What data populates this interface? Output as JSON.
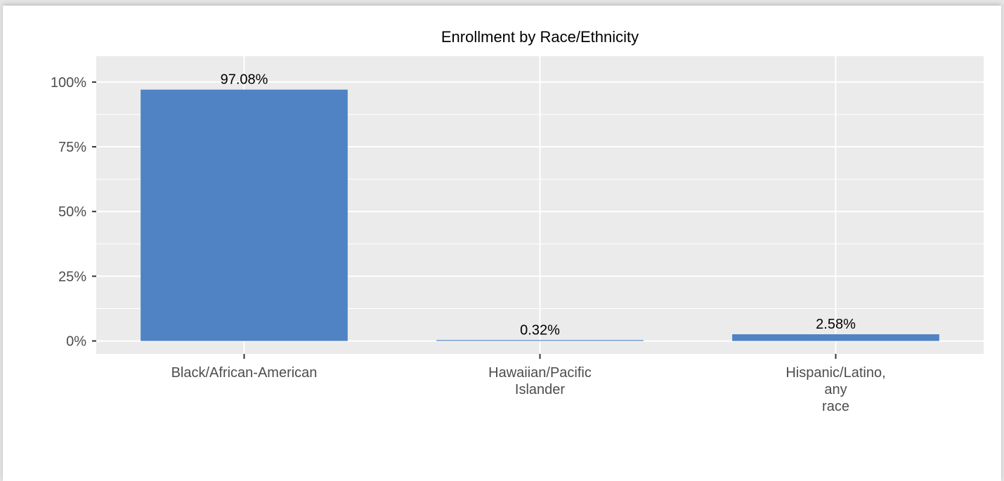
{
  "chart_data": {
    "type": "bar",
    "title": "Enrollment by Race/Ethnicity",
    "xlabel": "",
    "ylabel": "",
    "categories": [
      [
        "Black/African-American"
      ],
      [
        "Hawaiian/Pacific",
        "Islander"
      ],
      [
        "Hispanic/Latino,",
        "any",
        "race"
      ]
    ],
    "values": [
      97.08,
      0.32,
      2.58
    ],
    "data_labels": [
      "97.08%",
      "0.32%",
      "2.58%"
    ],
    "ylim": [
      -5,
      110
    ],
    "yticks": [
      0,
      25,
      50,
      75,
      100
    ],
    "ytick_labels": [
      "0%",
      "25%",
      "50%",
      "75%",
      "100%"
    ],
    "grid": true,
    "colors": {
      "bar": "#4f83c4",
      "panel": "#ebebeb",
      "grid": "#ffffff",
      "page": "#e6e6e6"
    }
  }
}
